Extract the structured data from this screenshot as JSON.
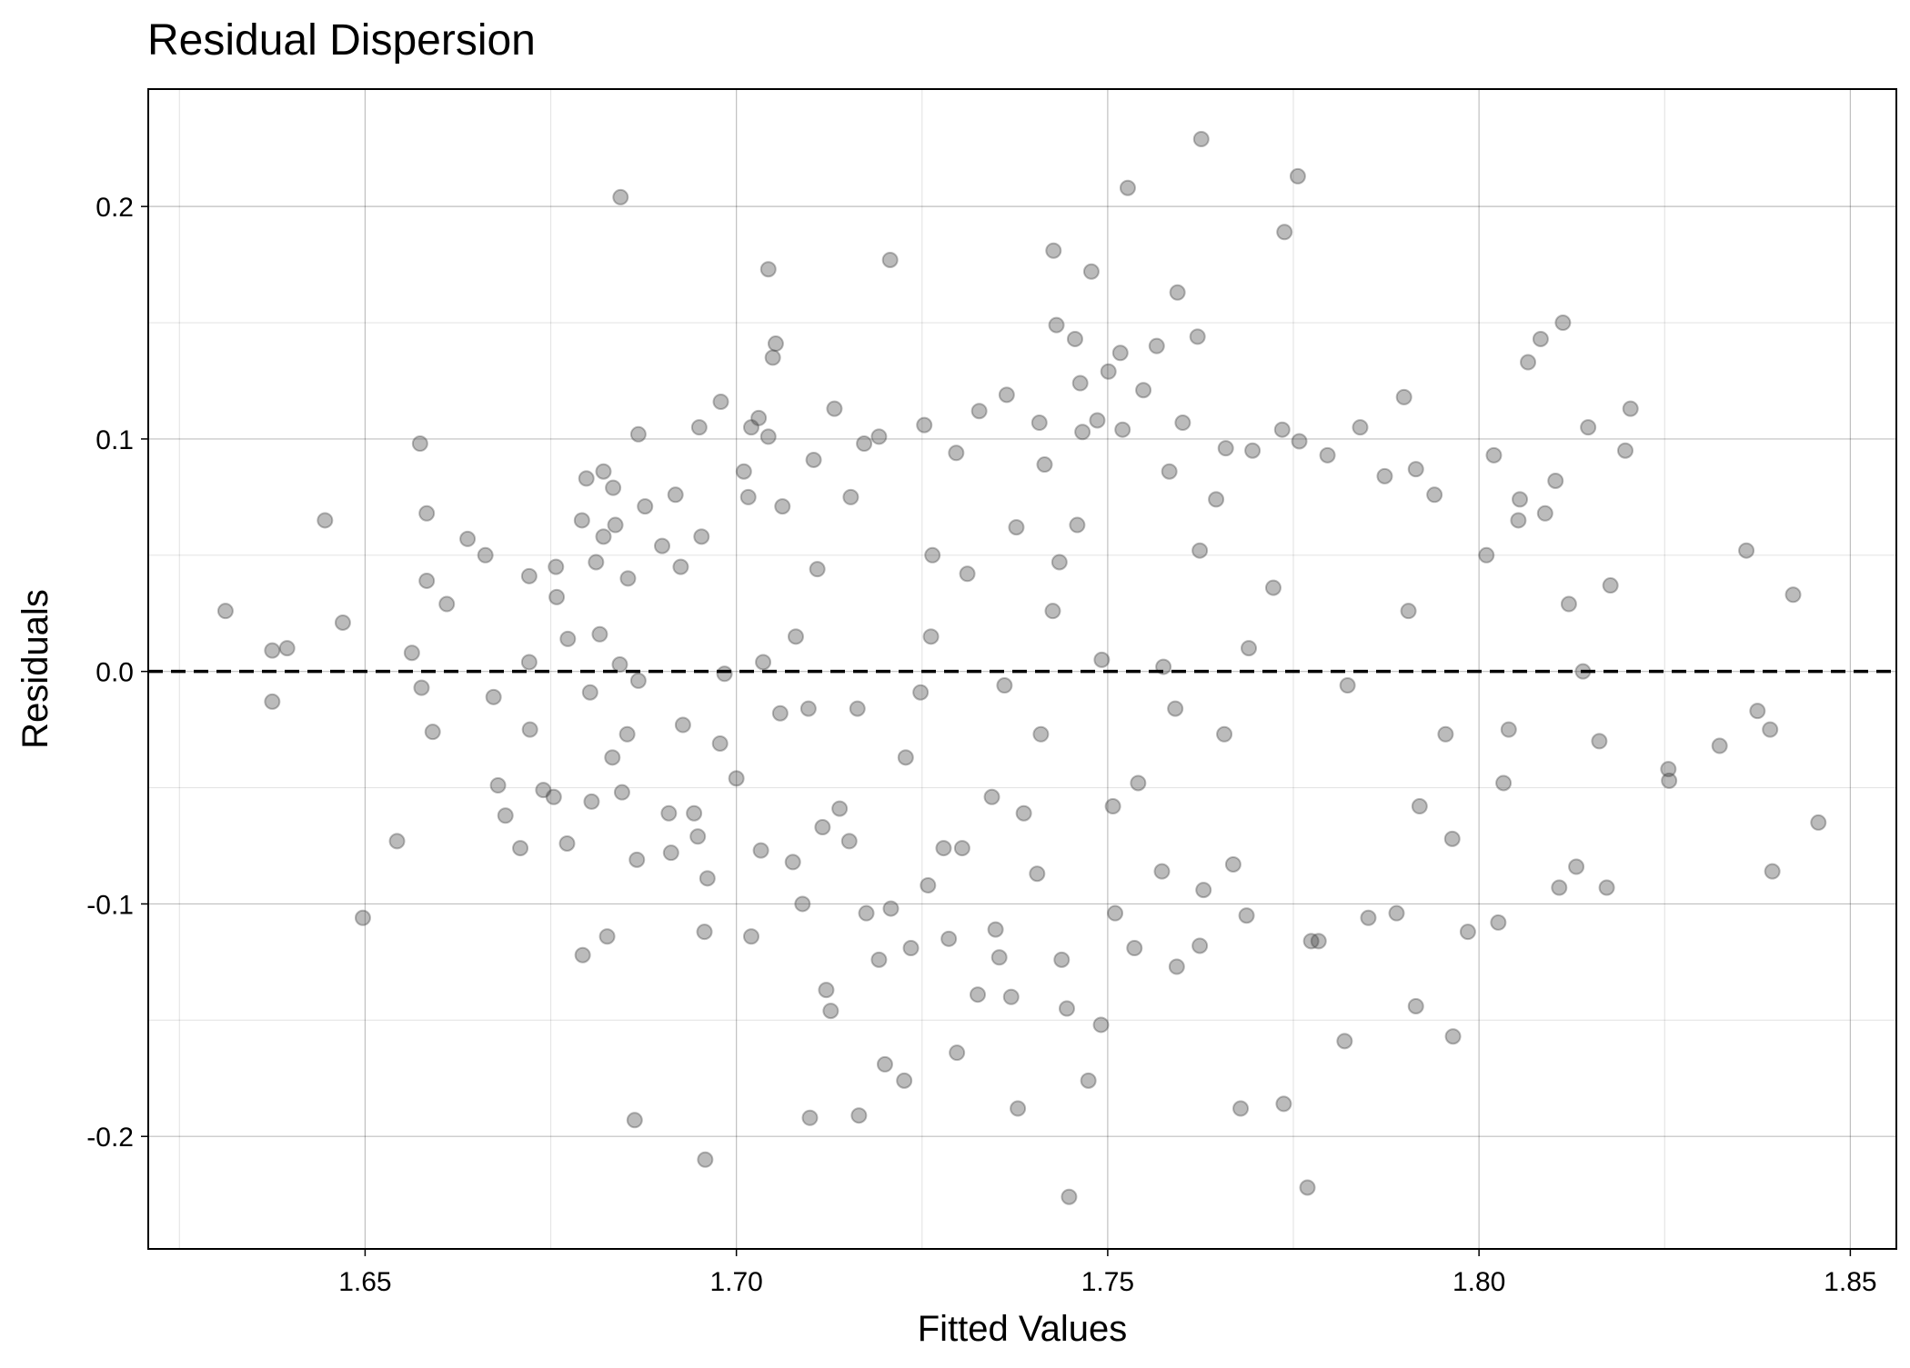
{
  "chart_data": {
    "type": "scatter",
    "title": "Residual Dispersion",
    "xlabel": "Fitted Values",
    "ylabel": "Residuals",
    "color": "#3c3c3c",
    "alpha": 0.35,
    "grid": true,
    "hline": 0,
    "xlim": [
      1.6208,
      1.8562
    ],
    "ylim": [
      -0.2484,
      0.2505
    ],
    "xticks": [
      {
        "value": 1.65,
        "label": "1.65"
      },
      {
        "value": 1.7,
        "label": "1.70"
      },
      {
        "value": 1.75,
        "label": "1.75"
      },
      {
        "value": 1.8,
        "label": "1.80"
      },
      {
        "value": 1.85,
        "label": "1.85"
      }
    ],
    "yticks": [
      -0.2,
      -0.1,
      {
        "value": 0,
        "label": "0.0"
      },
      0.1,
      0.2
    ],
    "minor_xticks": [
      1.625,
      1.675,
      1.725,
      1.775,
      1.825
    ],
    "minor_yticks": [
      -0.15,
      -0.05,
      0.05,
      0.15
    ],
    "x": [
      1.6312,
      1.6375,
      1.6395,
      1.6375,
      1.6446,
      1.647,
      1.6497,
      1.6543,
      1.6563,
      1.6574,
      1.6583,
      1.6576,
      1.6583,
      1.6591,
      1.661,
      1.6638,
      1.6662,
      1.6673,
      1.6679,
      1.6689,
      1.6709,
      1.6721,
      1.6721,
      1.6722,
      1.674,
      1.6754,
      1.6757,
      1.6758,
      1.6773,
      1.6772,
      1.6792,
      1.6793,
      1.6798,
      1.6803,
      1.6805,
      1.6811,
      1.6816,
      1.6821,
      1.6821,
      1.6826,
      1.6834,
      1.6837,
      1.6844,
      1.6846,
      1.6833,
      1.6843,
      1.6853,
      1.6854,
      1.6863,
      1.6866,
      1.6868,
      1.6868,
      1.6877,
      1.69,
      1.6909,
      1.6912,
      1.6918,
      1.6925,
      1.6928,
      1.6943,
      1.6948,
      1.695,
      1.6953,
      1.6957,
      1.6958,
      1.6961,
      1.6978,
      1.6979,
      1.6984,
      1.7,
      1.701,
      1.7016,
      1.702,
      1.702,
      1.703,
      1.7033,
      1.7036,
      1.7043,
      1.7043,
      1.7049,
      1.7053,
      1.7059,
      1.7062,
      1.7076,
      1.7089,
      1.7097,
      1.7099,
      1.7104,
      1.7109,
      1.7116,
      1.7121,
      1.7127,
      1.7132,
      1.7139,
      1.7152,
      1.7154,
      1.7165,
      1.7172,
      1.7175,
      1.7192,
      1.7192,
      1.72,
      1.7207,
      1.7208,
      1.7226,
      1.7235,
      1.7248,
      1.7253,
      1.7258,
      1.7264,
      1.7279,
      1.7286,
      1.7296,
      1.7297,
      1.7304,
      1.7325,
      1.7327,
      1.7344,
      1.7349,
      1.7354,
      1.7364,
      1.737,
      1.7377,
      1.7379,
      1.7387,
      1.7405,
      1.7408,
      1.7415,
      1.7427,
      1.7431,
      1.7435,
      1.7438,
      1.7445,
      1.7448,
      1.7456,
      1.7463,
      1.7466,
      1.7474,
      1.7478,
      1.7486,
      1.7491,
      1.7501,
      1.7507,
      1.751,
      1.7517,
      1.752,
      1.7527,
      1.7536,
      1.7548,
      1.7566,
      1.7573,
      1.7583,
      1.7593,
      1.7594,
      1.7601,
      1.7621,
      1.7626,
      1.7624,
      1.7629,
      1.7646,
      1.7659,
      1.7669,
      1.7679,
      1.7687,
      1.7695,
      1.7735,
      1.7737,
      1.7738,
      1.7756,
      1.7758,
      1.7769,
      1.7774,
      1.7784,
      1.7796,
      1.7819,
      1.784,
      1.7851,
      1.7873,
      1.7889,
      1.7899,
      1.7915,
      1.7915,
      1.792,
      1.794,
      1.7965,
      1.7964,
      1.7985,
      1.801,
      1.802,
      1.8026,
      1.8033,
      1.804,
      1.8053,
      1.8055,
      1.8066,
      1.8083,
      1.8089,
      1.8103,
      1.8108,
      1.8113,
      1.8121,
      1.8131,
      1.814,
      1.8147,
      1.8162,
      1.8172,
      1.8177,
      1.8197,
      1.8204,
      1.8255,
      1.8256,
      1.8324,
      1.836,
      1.8375,
      1.8392,
      1.8395,
      1.8423,
      1.8457,
      1.7262,
      1.7361,
      1.741,
      1.7492,
      1.7575,
      1.7657,
      1.7723,
      1.7163,
      1.708,
      1.7823,
      1.7905,
      1.7955,
      1.7459,
      1.7541,
      1.7624,
      1.769,
      1.7311,
      1.7228,
      1.7426,
      1.7591
    ],
    "values": [
      0.026,
      0.009,
      0.01,
      -0.013,
      0.065,
      0.021,
      -0.106,
      -0.073,
      0.008,
      0.098,
      0.068,
      -0.007,
      0.039,
      -0.026,
      0.029,
      0.057,
      0.05,
      -0.011,
      -0.049,
      -0.062,
      -0.076,
      0.041,
      0.004,
      -0.025,
      -0.051,
      -0.054,
      0.045,
      0.032,
      0.014,
      -0.074,
      0.065,
      -0.122,
      0.083,
      -0.009,
      -0.056,
      0.047,
      0.016,
      0.058,
      0.086,
      -0.114,
      0.079,
      0.063,
      0.204,
      -0.052,
      -0.037,
      0.003,
      -0.027,
      0.04,
      -0.193,
      -0.081,
      0.102,
      -0.004,
      0.071,
      0.054,
      -0.061,
      -0.078,
      0.076,
      0.045,
      -0.023,
      -0.061,
      -0.071,
      0.105,
      0.058,
      -0.112,
      -0.21,
      -0.089,
      -0.031,
      0.116,
      -0.001,
      -0.046,
      0.086,
      0.075,
      0.105,
      -0.114,
      0.109,
      -0.077,
      0.004,
      0.173,
      0.101,
      0.135,
      0.141,
      -0.018,
      0.071,
      -0.082,
      -0.1,
      -0.016,
      -0.192,
      0.091,
      0.044,
      -0.067,
      -0.137,
      -0.146,
      0.113,
      -0.059,
      -0.073,
      0.075,
      -0.191,
      0.098,
      -0.104,
      0.101,
      -0.124,
      -0.169,
      0.177,
      -0.102,
      -0.176,
      -0.119,
      -0.009,
      0.106,
      -0.092,
      0.05,
      -0.076,
      -0.115,
      0.094,
      -0.164,
      -0.076,
      -0.139,
      0.112,
      -0.054,
      -0.111,
      -0.123,
      0.119,
      -0.14,
      0.062,
      -0.188,
      -0.061,
      -0.087,
      0.107,
      0.089,
      0.181,
      0.149,
      0.047,
      -0.124,
      -0.145,
      -0.226,
      0.143,
      0.124,
      0.103,
      -0.176,
      0.172,
      0.108,
      -0.152,
      0.129,
      -0.058,
      -0.104,
      0.137,
      0.104,
      0.208,
      -0.119,
      0.121,
      0.14,
      -0.086,
      0.086,
      -0.127,
      0.163,
      0.107,
      0.144,
      0.229,
      -0.118,
      -0.094,
      0.074,
      0.096,
      -0.083,
      -0.188,
      -0.105,
      0.095,
      0.104,
      -0.186,
      0.189,
      0.213,
      0.099,
      -0.222,
      -0.116,
      -0.116,
      0.093,
      -0.159,
      0.105,
      -0.106,
      0.084,
      -0.104,
      0.118,
      0.087,
      -0.144,
      -0.058,
      0.076,
      -0.157,
      -0.072,
      -0.112,
      0.05,
      0.093,
      -0.108,
      -0.048,
      -0.025,
      0.065,
      0.074,
      0.133,
      0.143,
      0.068,
      0.082,
      -0.093,
      0.15,
      0.029,
      -0.084,
      0.0,
      0.105,
      -0.03,
      -0.093,
      0.037,
      0.095,
      0.113,
      -0.042,
      -0.047,
      -0.032,
      0.052,
      -0.017,
      -0.025,
      -0.086,
      0.033,
      -0.065,
      0.015,
      -0.006,
      -0.027,
      0.005,
      0.002,
      -0.027,
      0.036,
      -0.016,
      0.015,
      -0.006,
      0.026,
      -0.027,
      0.063,
      -0.048,
      0.052,
      0.01,
      0.042,
      -0.037,
      0.026,
      -0.016
    ]
  }
}
